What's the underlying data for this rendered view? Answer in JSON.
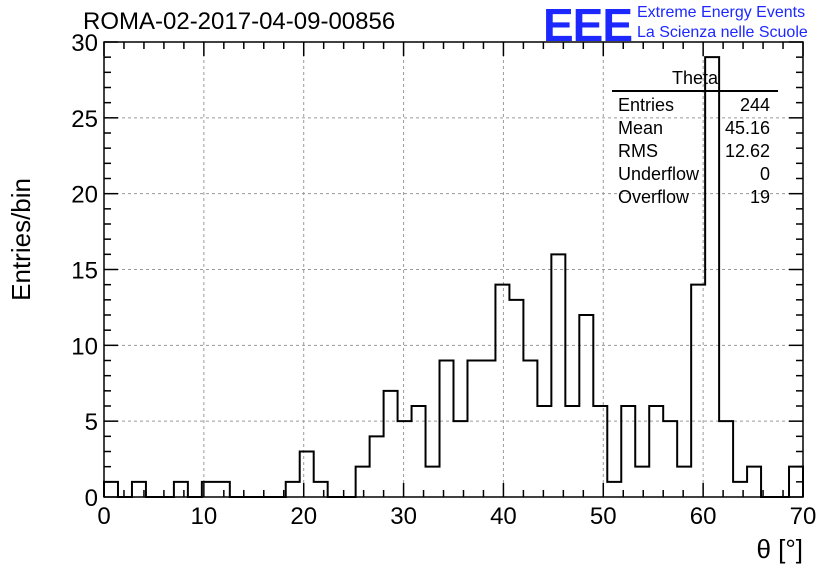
{
  "header": {
    "run_title": "ROMA-02-2017-04-09-00856",
    "logo_text": "EEE",
    "logo_line1": "Extreme Energy Events",
    "logo_line2": "La Scienza nelle Scuole",
    "brand_color": "#1c28ff"
  },
  "stats_box": {
    "title": "Theta",
    "rows": [
      {
        "label": "Entries",
        "value": "244"
      },
      {
        "label": "Mean",
        "value": "45.16"
      },
      {
        "label": "RMS",
        "value": "12.62"
      },
      {
        "label": "Underflow",
        "value": "0"
      },
      {
        "label": "Overflow",
        "value": "19"
      }
    ]
  },
  "chart_data": {
    "type": "bar",
    "histogram_step": true,
    "title": "",
    "xlabel": "θ [°]",
    "ylabel": "Entries/bin",
    "xlim": [
      0,
      70
    ],
    "ylim": [
      0,
      30
    ],
    "grid": true,
    "x_ticks": [
      0,
      10,
      20,
      30,
      40,
      50,
      60,
      70
    ],
    "y_ticks": [
      0,
      5,
      10,
      15,
      20,
      25,
      30
    ],
    "bin_width": 1.4,
    "bin_start": 0,
    "values": [
      1,
      0,
      1,
      0,
      0,
      1,
      0,
      1,
      1,
      0,
      0,
      0,
      0,
      1,
      3,
      1,
      0,
      0,
      2,
      4,
      7,
      5,
      6,
      2,
      9,
      5,
      9,
      9,
      14,
      13,
      9,
      6,
      16,
      6,
      12,
      6,
      1,
      6,
      2,
      6,
      5,
      2,
      14,
      29,
      5,
      1,
      2,
      0,
      0,
      2
    ],
    "line_color": "#000000",
    "grid_color": "#9a9a9a"
  }
}
